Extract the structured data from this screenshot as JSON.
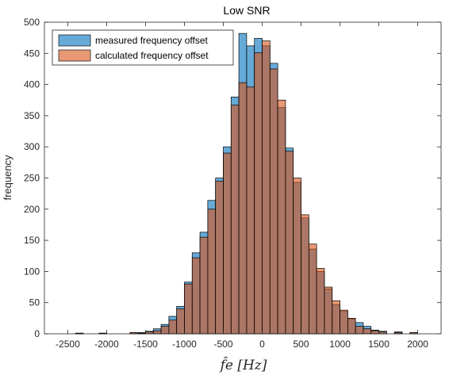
{
  "chart_data": {
    "type": "bar",
    "title": "Low SNR",
    "xlabel": "f̂e [Hz]",
    "ylabel": "frequency",
    "xlim": [
      -2800,
      2300
    ],
    "ylim": [
      0,
      500
    ],
    "xticks": [
      -2500,
      -2000,
      -1500,
      -1000,
      -500,
      0,
      500,
      1000,
      1500,
      2000
    ],
    "yticks": [
      0,
      50,
      100,
      150,
      200,
      250,
      300,
      350,
      400,
      450,
      500
    ],
    "bin_width": 100,
    "bin_centers": [
      -2350,
      -2050,
      -1650,
      -1550,
      -1450,
      -1350,
      -1250,
      -1150,
      -1050,
      -950,
      -850,
      -750,
      -650,
      -550,
      -450,
      -350,
      -250,
      -150,
      -50,
      50,
      150,
      250,
      350,
      450,
      550,
      650,
      750,
      850,
      950,
      1050,
      1150,
      1250,
      1350,
      1450,
      1550,
      1750,
      1950
    ],
    "legend_position": "top-left",
    "series": [
      {
        "name": "measured frequency offset",
        "color": "#0072BD",
        "values": [
          1,
          1,
          2,
          2,
          4,
          8,
          15,
          28,
          44,
          83,
          130,
          163,
          214,
          250,
          300,
          380,
          482,
          462,
          474,
          462,
          434,
          363,
          298,
          243,
          186,
          136,
          100,
          72,
          47,
          36,
          24,
          18,
          12,
          6,
          4,
          3,
          2
        ]
      },
      {
        "name": "calculated frequency offset",
        "color": "#D95319",
        "values": [
          1,
          1,
          2,
          1,
          3,
          5,
          12,
          22,
          40,
          80,
          122,
          155,
          200,
          245,
          290,
          367,
          403,
          396,
          451,
          470,
          425,
          375,
          293,
          250,
          191,
          144,
          105,
          75,
          53,
          38,
          25,
          12,
          8,
          5,
          3,
          2,
          2
        ]
      }
    ],
    "grid": false
  }
}
